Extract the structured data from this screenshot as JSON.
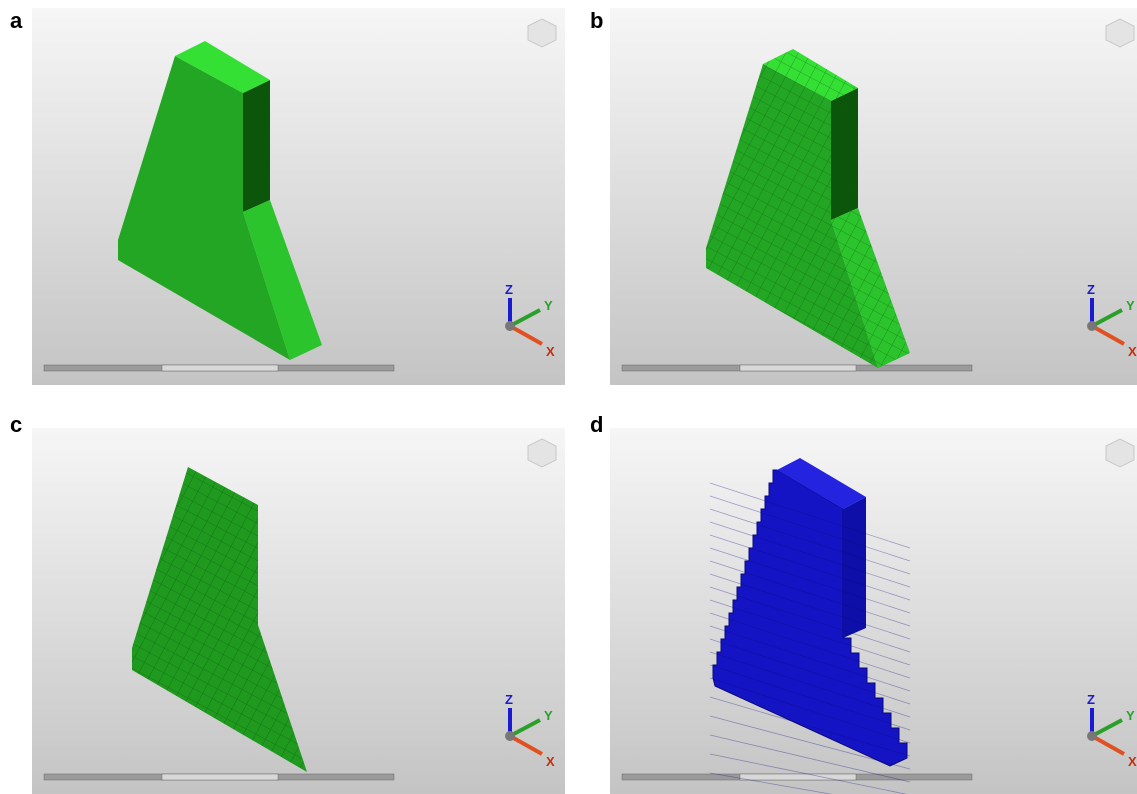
{
  "panels": [
    {
      "label": "a",
      "axes": [
        "Z",
        "Y",
        "X"
      ]
    },
    {
      "label": "b",
      "axes": [
        "Z",
        "Y",
        "X"
      ]
    },
    {
      "label": "c",
      "axes": [
        "Z",
        "Y",
        "X"
      ]
    },
    {
      "label": "d",
      "axes": [
        "Z",
        "Y",
        "X"
      ]
    }
  ]
}
